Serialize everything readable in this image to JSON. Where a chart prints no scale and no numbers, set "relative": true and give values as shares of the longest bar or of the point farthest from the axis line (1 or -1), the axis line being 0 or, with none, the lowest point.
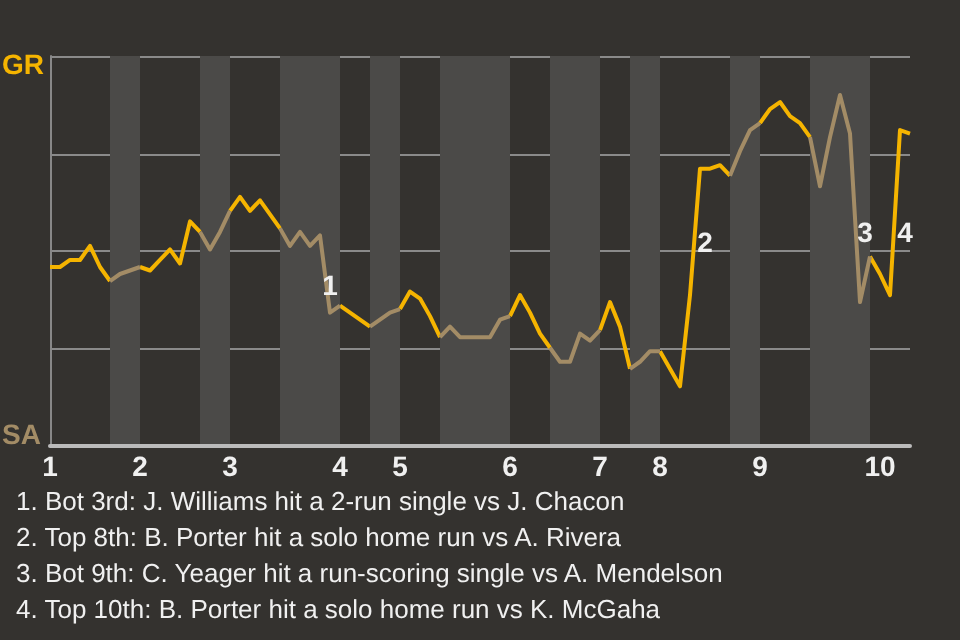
{
  "chart_data": {
    "type": "line",
    "relative": true,
    "categories": [
      "1",
      null,
      null,
      null,
      null,
      null,
      null,
      null,
      null,
      "2",
      null,
      null,
      null,
      null,
      null,
      null,
      null,
      null,
      "3",
      null,
      null,
      null,
      null,
      null,
      null,
      null,
      null,
      null,
      null,
      "4",
      null,
      null,
      null,
      null,
      null,
      "5",
      null,
      null,
      null,
      null,
      null,
      null,
      null,
      null,
      null,
      null,
      "6",
      null,
      null,
      null,
      null,
      null,
      null,
      null,
      null,
      "7",
      null,
      null,
      null,
      null,
      null,
      "8",
      null,
      null,
      null,
      null,
      null,
      null,
      null,
      null,
      null,
      "9",
      null,
      null,
      null,
      null,
      null,
      null,
      null,
      null,
      null,
      null,
      null,
      "10",
      null,
      null,
      null
    ],
    "series": [
      {
        "color": "#f5b400",
        "values": [
          0.51,
          0.51,
          0.53,
          0.53,
          0.57,
          0.51,
          0.47,
          null,
          null,
          0.51,
          0.5,
          0.53,
          0.56,
          0.52,
          0.64,
          0.61,
          null,
          null,
          0.67,
          0.71,
          0.67,
          0.7,
          0.66,
          0.62,
          null,
          null,
          null,
          null,
          null,
          0.4,
          0.38,
          0.36,
          0.34,
          null,
          null,
          0.39,
          0.44,
          0.42,
          0.37,
          0.31,
          null,
          null,
          null,
          null,
          null,
          null,
          0.37,
          0.43,
          0.38,
          0.32,
          0.28,
          null,
          null,
          null,
          null,
          0.33,
          0.41,
          0.34,
          0.22,
          null,
          null,
          0.27,
          0.22,
          0.17,
          0.43,
          0.79,
          0.79,
          0.8,
          0.77,
          null,
          null,
          0.92,
          0.96,
          0.98,
          0.94,
          0.92,
          0.88,
          null,
          null,
          null,
          null,
          null,
          0.54,
          0.49,
          0.43,
          0.9,
          0.89
        ]
      },
      {
        "color": "#a38c66",
        "values": [
          null,
          null,
          null,
          null,
          null,
          null,
          0.47,
          0.49,
          0.5,
          0.51,
          null,
          null,
          null,
          null,
          null,
          0.61,
          0.56,
          0.61,
          0.67,
          null,
          null,
          null,
          null,
          0.62,
          0.57,
          0.61,
          0.57,
          0.6,
          0.38,
          0.4,
          null,
          null,
          0.34,
          0.36,
          0.38,
          0.39,
          null,
          null,
          null,
          0.31,
          0.34,
          0.31,
          0.31,
          0.31,
          0.31,
          0.36,
          0.37,
          null,
          null,
          null,
          0.28,
          0.24,
          0.24,
          0.32,
          0.3,
          0.33,
          null,
          null,
          0.22,
          0.24,
          0.27,
          0.27,
          null,
          null,
          null,
          null,
          null,
          null,
          0.77,
          0.84,
          0.9,
          0.92,
          null,
          null,
          null,
          null,
          0.88,
          0.74,
          0.88,
          1,
          0.89,
          0.41,
          0.54,
          null,
          null,
          null,
          null
        ]
      }
    ],
    "grid": "y",
    "marker": "none",
    "annotations": [
      "GR",
      "SA",
      {
        "text": "1",
        "y": 0.46
      },
      {
        "text": "2",
        "y": 0.58
      },
      {
        "text": "3",
        "y": 0.61
      },
      {
        "text": "4",
        "y": 0.61
      },
      "1. Bot 3rd: J. Williams hit a 2-run single vs J. Chacon",
      "2. Top 8th: B. Porter hit a solo home run vs A. Rivera",
      "3. Bot 9th: C. Yeager hit a run-scoring single vs A. Mendelson",
      "4. Top 10th: B. Porter hit a solo home run vs K. McGaha"
    ]
  }
}
